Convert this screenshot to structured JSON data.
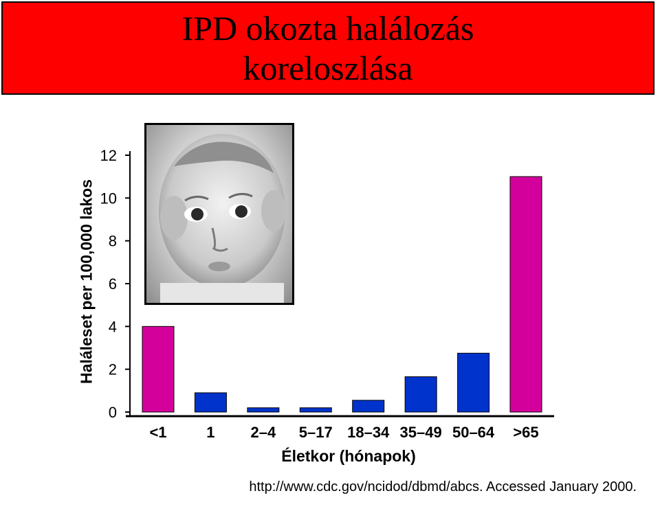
{
  "title_line1": "IPD okozta halálozás",
  "title_line2": "koreloszlása",
  "footnote": "http://www.cdc.gov/ncidod/dbmd/abcs. Accessed January 2000.",
  "colors": {
    "magenta": "#d4009b",
    "blue": "#0033cc",
    "title_bg": "#ff0000"
  },
  "chart_data": {
    "type": "bar",
    "categories": [
      "<1",
      "1",
      "2–4",
      "5–17",
      "18–34",
      "35–49",
      "50–64",
      ">65"
    ],
    "values": [
      4.0,
      0.9,
      0.2,
      0.2,
      0.55,
      1.65,
      2.75,
      11.0
    ],
    "bar_colors": [
      "#d4009b",
      "#0033cc",
      "#0033cc",
      "#0033cc",
      "#0033cc",
      "#0033cc",
      "#0033cc",
      "#d4009b"
    ],
    "ylabel": "Haláleset per 100,000 lakos",
    "xlabel": "Életkor (hónapok)",
    "yticks": [
      0,
      2,
      4,
      6,
      8,
      10,
      12
    ],
    "ylim": [
      0,
      12
    ],
    "grid": false,
    "legend": false
  }
}
